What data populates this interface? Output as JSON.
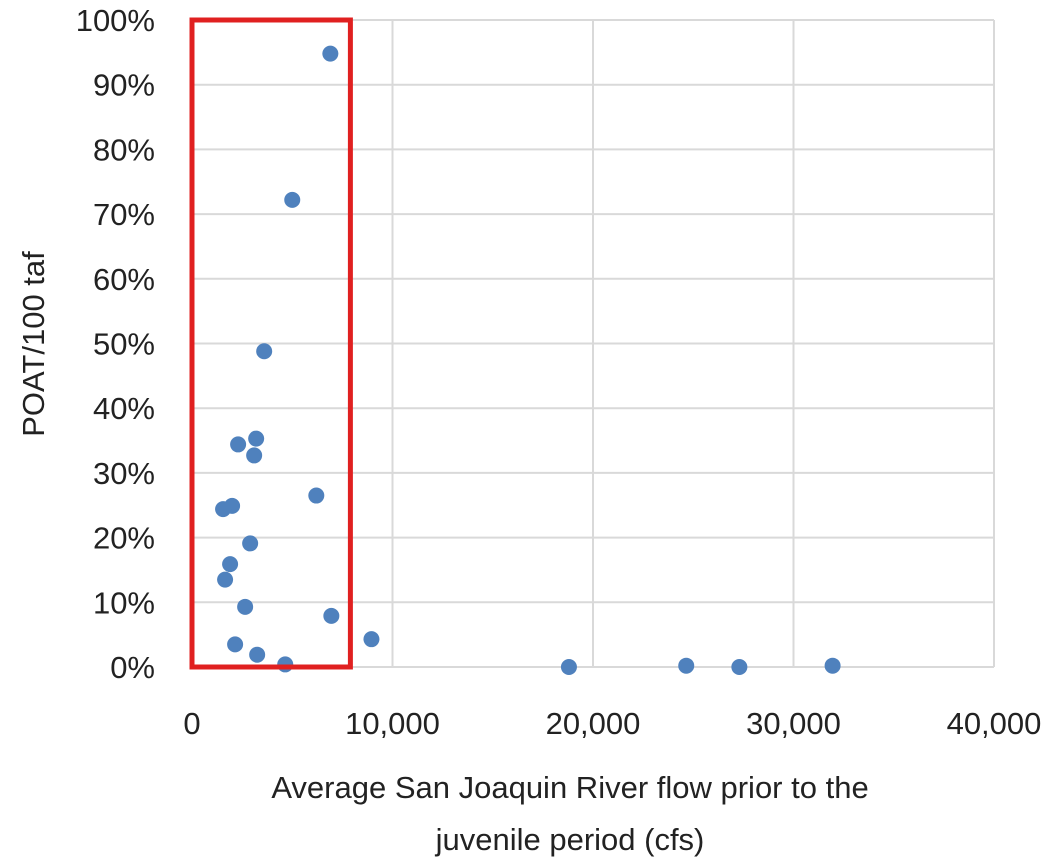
{
  "chart_data": {
    "type": "scatter",
    "title": "",
    "xlabel_lines": [
      "Average San Joaquin River flow prior to the",
      "juvenile period (cfs)"
    ],
    "ylabel": "POAT/100 taf",
    "xlim": [
      0,
      40000
    ],
    "ylim": [
      0,
      100
    ],
    "x_ticks": [
      0,
      10000,
      20000,
      30000,
      40000
    ],
    "x_tick_labels": [
      "0",
      "10,000",
      "20,000",
      "30,000",
      "40,000"
    ],
    "y_ticks": [
      0,
      10,
      20,
      30,
      40,
      50,
      60,
      70,
      80,
      90,
      100
    ],
    "y_tick_labels": [
      "0%",
      "10%",
      "20%",
      "30%",
      "40%",
      "50%",
      "60%",
      "70%",
      "80%",
      "90%",
      "100%"
    ],
    "grid": true,
    "marker_color": "#4f81bd",
    "highlight": {
      "x_range": [
        0,
        7900
      ],
      "y_range": [
        0,
        100
      ],
      "color": "#e02020"
    },
    "series": [
      {
        "name": "POAT",
        "points": [
          {
            "x": 6900,
            "y": 94.8
          },
          {
            "x": 5000,
            "y": 72.2
          },
          {
            "x": 3600,
            "y": 48.8
          },
          {
            "x": 3200,
            "y": 35.3
          },
          {
            "x": 2300,
            "y": 34.4
          },
          {
            "x": 3100,
            "y": 32.7
          },
          {
            "x": 6200,
            "y": 26.5
          },
          {
            "x": 2000,
            "y": 24.9
          },
          {
            "x": 1550,
            "y": 24.4
          },
          {
            "x": 2900,
            "y": 19.1
          },
          {
            "x": 1900,
            "y": 15.9
          },
          {
            "x": 1650,
            "y": 13.5
          },
          {
            "x": 2650,
            "y": 9.3
          },
          {
            "x": 6950,
            "y": 7.9
          },
          {
            "x": 8950,
            "y": 4.3
          },
          {
            "x": 2150,
            "y": 3.5
          },
          {
            "x": 3250,
            "y": 1.9
          },
          {
            "x": 4650,
            "y": 0.4
          },
          {
            "x": 18800,
            "y": 0.0
          },
          {
            "x": 24650,
            "y": 0.2
          },
          {
            "x": 27300,
            "y": 0.0
          },
          {
            "x": 31950,
            "y": 0.2
          }
        ]
      }
    ]
  }
}
